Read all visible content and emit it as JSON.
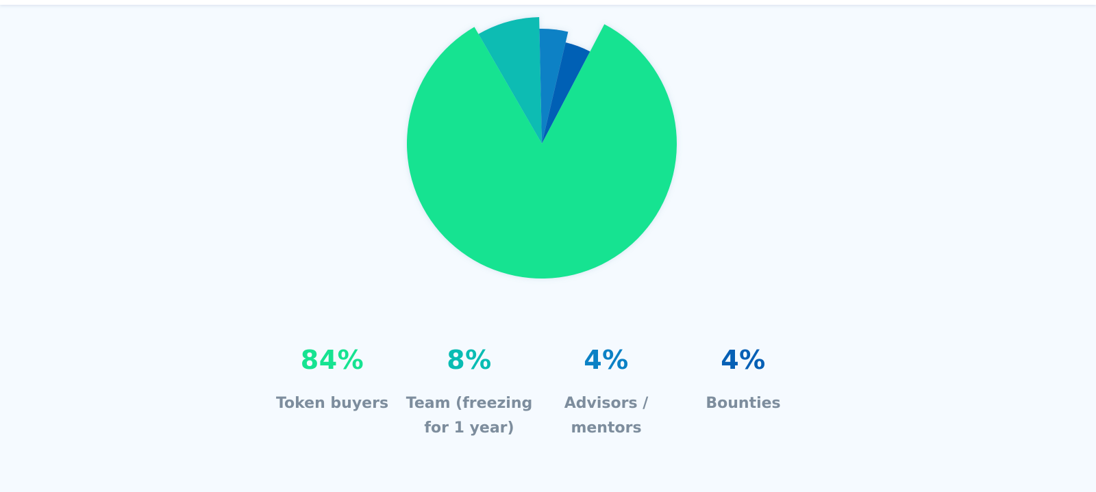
{
  "chart_data": {
    "type": "pie",
    "title": "",
    "slices": [
      {
        "label": "Token buyers",
        "value": 84,
        "value_label": "84%",
        "color": "#16e391"
      },
      {
        "label": "Team (freezing\nfor 1 year)",
        "value": 8,
        "value_label": "8%",
        "color": "#09bcb3"
      },
      {
        "label": "Advisors /\nmentors",
        "value": 4,
        "value_label": "4%",
        "color": "#0b81c5"
      },
      {
        "label": "Bounties",
        "value": 4,
        "value_label": "4%",
        "color": "#0660b5"
      }
    ],
    "legend": "bottom"
  }
}
